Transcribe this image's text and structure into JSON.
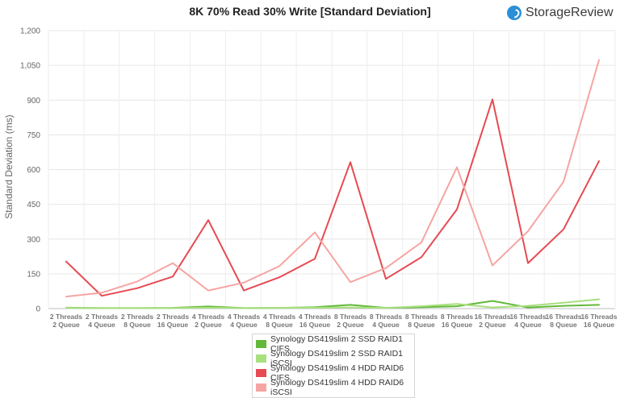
{
  "header": {
    "brand": "StorageReview",
    "brand_logo_icon": "storagereview-logo-icon"
  },
  "chart_data": {
    "type": "line",
    "title": "8K 70% Read 30% Write [Standard Deviation]",
    "xlabel": "",
    "ylabel": "Standard Deviation (ms)",
    "ylim": [
      0,
      1200
    ],
    "yticks": [
      "0",
      "150",
      "300",
      "450",
      "600",
      "750",
      "900",
      "1,050",
      "1,200"
    ],
    "grid": true,
    "legend_position": "bottom-center",
    "categories": [
      [
        "2 Threads",
        "2 Queue"
      ],
      [
        "2 Threads",
        "4 Queue"
      ],
      [
        "2 Threads",
        "8 Queue"
      ],
      [
        "2 Threads",
        "16 Queue"
      ],
      [
        "4 Threads",
        "2 Queue"
      ],
      [
        "4 Threads",
        "4 Queue"
      ],
      [
        "4 Threads",
        "8 Queue"
      ],
      [
        "4 Threads",
        "16 Queue"
      ],
      [
        "8 Threads",
        "2 Queue"
      ],
      [
        "8 Threads",
        "4 Queue"
      ],
      [
        "8 Threads",
        "8 Queue"
      ],
      [
        "8 Threads",
        "16 Queue"
      ],
      [
        "16 Threads",
        "2 Queue"
      ],
      [
        "16 Threads",
        "4 Queue"
      ],
      [
        "16 Threads",
        "8 Queue"
      ],
      [
        "16 Threads",
        "16 Queue"
      ]
    ],
    "series": [
      {
        "name": "Synology DS419slim 2 SSD RAID1 CIFS",
        "color": "#63b83a",
        "values": [
          4,
          2,
          2,
          3,
          9,
          2,
          3,
          6,
          16,
          3,
          6,
          10,
          33,
          5,
          12,
          16
        ]
      },
      {
        "name": "Synology DS419slim 2 SSD RAID1 iSCSI",
        "color": "#a8e07e",
        "values": [
          3,
          2,
          2,
          2,
          4,
          2,
          3,
          4,
          5,
          3,
          10,
          20,
          5,
          12,
          25,
          40
        ]
      },
      {
        "name": "Synology DS419slim 4 HDD RAID6 CIFS",
        "color": "#e64a52",
        "values": [
          203,
          55,
          88,
          138,
          382,
          78,
          135,
          215,
          632,
          128,
          222,
          428,
          903,
          196,
          342,
          637
        ]
      },
      {
        "name": "Synology DS419slim 4 HDD RAID6 iSCSI",
        "color": "#f5a5a3",
        "values": [
          52,
          68,
          117,
          196,
          78,
          112,
          183,
          329,
          114,
          175,
          286,
          610,
          186,
          334,
          547,
          1073
        ]
      }
    ]
  }
}
